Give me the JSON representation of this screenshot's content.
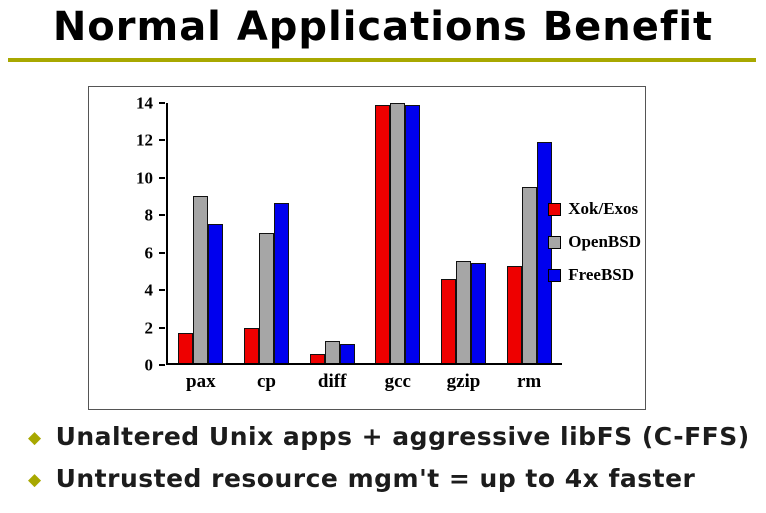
{
  "slide": {
    "title": "Normal Applications Benefit",
    "accent_color": "#a8a800",
    "bullet_diamond": "◆",
    "bullets": [
      "Unaltered Unix apps + aggressive libFS (C-FFS)",
      "Untrusted resource mgm't = up to 4x faster"
    ]
  },
  "chart_data": {
    "type": "bar",
    "title": "",
    "xlabel": "",
    "ylabel": "",
    "categories": [
      "pax",
      "cp",
      "diff",
      "gcc",
      "gzip",
      "rm"
    ],
    "series": [
      {
        "name": "Xok/Exos",
        "color": "#ee0000",
        "values": [
          1.6,
          1.9,
          0.5,
          13.9,
          4.5,
          5.2
        ]
      },
      {
        "name": "OpenBSD",
        "color": "#a6a6a6",
        "values": [
          9.0,
          7.0,
          1.2,
          14.0,
          5.5,
          9.5
        ]
      },
      {
        "name": "FreeBSD",
        "color": "#0000ee",
        "values": [
          7.5,
          8.6,
          1.0,
          13.9,
          5.4,
          11.9
        ]
      }
    ],
    "ylim": [
      0,
      14
    ],
    "yticks": [
      0,
      2,
      4,
      6,
      8,
      10,
      12,
      14
    ],
    "grid": false,
    "legend_position": "right",
    "plot_bg": "#ffffff"
  }
}
